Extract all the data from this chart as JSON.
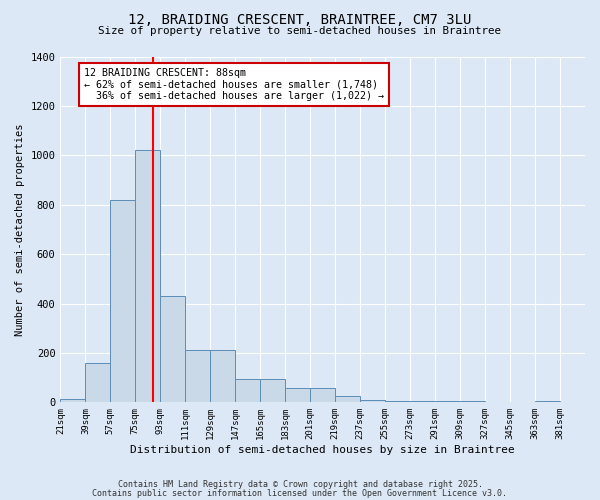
{
  "title": "12, BRAIDING CRESCENT, BRAINTREE, CM7 3LU",
  "subtitle": "Size of property relative to semi-detached houses in Braintree",
  "xlabel": "Distribution of semi-detached houses by size in Braintree",
  "ylabel": "Number of semi-detached properties",
  "bin_edges": [
    21,
    39,
    57,
    75,
    93,
    111,
    129,
    147,
    165,
    183,
    201,
    219,
    237,
    255,
    273,
    291,
    309,
    327,
    345,
    363,
    381
  ],
  "bar_heights": [
    15,
    160,
    820,
    1020,
    430,
    210,
    210,
    95,
    95,
    60,
    60,
    25,
    10,
    5,
    5,
    5,
    5,
    0,
    0,
    5
  ],
  "bar_color": "#c9d9e8",
  "bar_edge_color": "#5b8db8",
  "property_size": 88,
  "property_label": "12 BRAIDING CRESCENT: 88sqm",
  "pct_smaller": 62,
  "n_smaller": 1748,
  "pct_larger": 36,
  "n_larger": 1022,
  "vline_color": "red",
  "ylim": [
    0,
    1400
  ],
  "yticks": [
    0,
    200,
    400,
    600,
    800,
    1000,
    1200,
    1400
  ],
  "annotation_box_color": "#cc0000",
  "background_color": "#dce8f5",
  "footer_line1": "Contains HM Land Registry data © Crown copyright and database right 2025.",
  "footer_line2": "Contains public sector information licensed under the Open Government Licence v3.0."
}
